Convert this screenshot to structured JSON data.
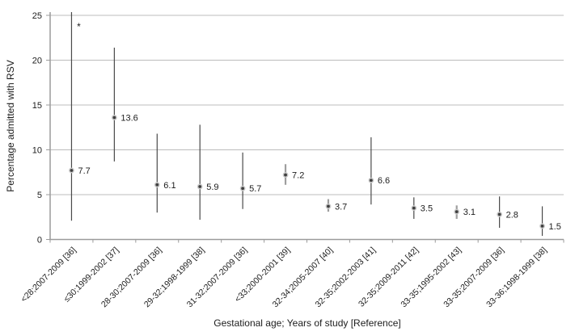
{
  "chart_data": {
    "type": "scatter",
    "title": "",
    "ylabel": "Percentage admitted with RSV",
    "xlabel": "Gestational age; Years of study [Reference]",
    "ylim": [
      0,
      25
    ],
    "ytick_step": 5,
    "yticks": [
      0,
      5,
      10,
      15,
      20,
      25
    ],
    "grid": "horizontal",
    "legend": "none",
    "points": [
      {
        "category": "<28;2007-2009 [36]",
        "value": 7.7,
        "ci_low": 2.1,
        "ci_high": 25.5,
        "ci_clipped_top": true,
        "bar": "thin"
      },
      {
        "category": "≤30;1999-2002 [37]",
        "value": 13.6,
        "ci_low": 8.7,
        "ci_high": 21.4,
        "ci_clipped_top": false,
        "bar": "thin"
      },
      {
        "category": "28-30;2007-2009 [36]",
        "value": 6.1,
        "ci_low": 3.0,
        "ci_high": 11.8,
        "ci_clipped_top": false,
        "bar": "thin"
      },
      {
        "category": "29-32;1998-1999 [38]",
        "value": 5.9,
        "ci_low": 2.2,
        "ci_high": 12.8,
        "ci_clipped_top": false,
        "bar": "thin"
      },
      {
        "category": "31-32;2007-2009 [36]",
        "value": 5.7,
        "ci_low": 3.4,
        "ci_high": 9.7,
        "ci_clipped_top": false,
        "bar": "thin"
      },
      {
        "category": "<33;2000-2001 [39]",
        "value": 7.2,
        "ci_low": 6.1,
        "ci_high": 8.4,
        "ci_clipped_top": false,
        "bar": "thick-gray"
      },
      {
        "category": "32-34;2005-2007 [40]",
        "value": 3.7,
        "ci_low": 3.1,
        "ci_high": 4.5,
        "ci_clipped_top": false,
        "bar": "thick-gray"
      },
      {
        "category": "32-35;2002-2003 [41]",
        "value": 6.6,
        "ci_low": 3.9,
        "ci_high": 11.4,
        "ci_clipped_top": false,
        "bar": "thin"
      },
      {
        "category": "32-35;2009-2011 [42]",
        "value": 3.5,
        "ci_low": 2.3,
        "ci_high": 4.7,
        "ci_clipped_top": false,
        "bar": "thin"
      },
      {
        "category": "33-35;1995-2002 [43]",
        "value": 3.1,
        "ci_low": 2.3,
        "ci_high": 3.8,
        "ci_clipped_top": false,
        "bar": "thick-gray"
      },
      {
        "category": "33-35;2007-2009 [36]",
        "value": 2.8,
        "ci_low": 1.3,
        "ci_high": 4.8,
        "ci_clipped_top": false,
        "bar": "thin"
      },
      {
        "category": "33-36;1998-1999 [38]",
        "value": 1.5,
        "ci_low": 0.4,
        "ci_high": 3.7,
        "ci_clipped_top": false,
        "bar": "thin"
      }
    ],
    "annotation": {
      "symbol": "*",
      "category_index": 0,
      "value": 24
    },
    "colors": {
      "background": "#ffffff",
      "gridline": "#bcbcbc",
      "axis": "#9b9b9b",
      "bar_thin": "#4a4a4a",
      "bar_thick": "#9e9e9e",
      "marker_fill": "#3f3f3f",
      "marker_ring": "#c9c9c9",
      "text": "#1c1c1c"
    }
  }
}
